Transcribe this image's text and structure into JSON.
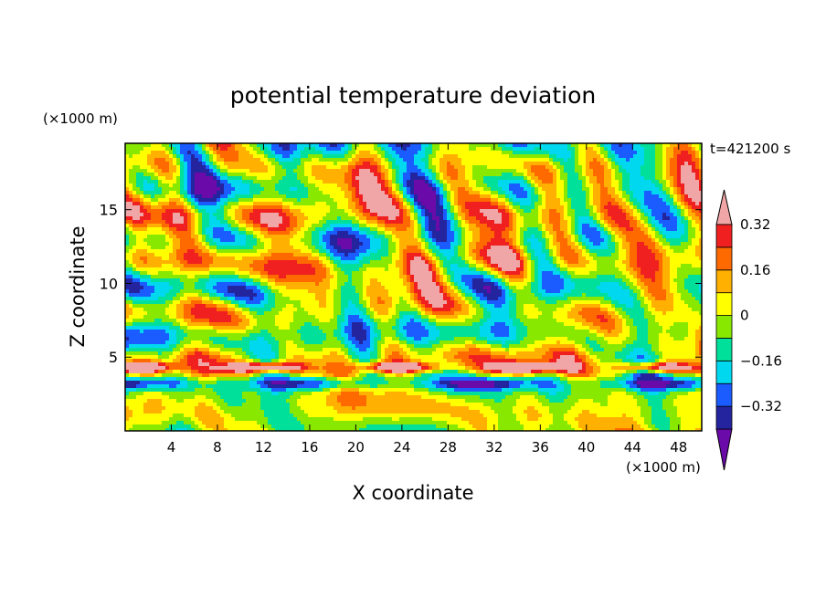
{
  "chart_data": {
    "type": "heatmap",
    "title": "potential temperature deviation",
    "xlabel": "X coordinate",
    "ylabel": "Z coordinate",
    "x_unit": "(×1000 m)",
    "y_unit": "(×1000 m)",
    "time_label": "t=421200 s",
    "xlim": [
      0,
      50
    ],
    "ylim": [
      0,
      19.5
    ],
    "x_ticks": [
      4,
      8,
      12,
      16,
      20,
      24,
      28,
      32,
      36,
      40,
      44,
      48
    ],
    "x_tick_labels": [
      "4",
      "8",
      "12",
      "16",
      "20",
      "24",
      "28",
      "32",
      "36",
      "40",
      "44",
      "48"
    ],
    "y_ticks": [
      5,
      10,
      15
    ],
    "y_tick_labels": [
      "5",
      "10",
      "15"
    ],
    "colorbar": {
      "levels": [
        -0.4,
        -0.32,
        -0.24,
        -0.16,
        -0.08,
        0,
        0.08,
        0.16,
        0.24,
        0.32,
        0.4
      ],
      "tick_values": [
        0.32,
        0.16,
        0,
        -0.16,
        -0.32
      ],
      "tick_labels": [
        "0.32",
        "0.16",
        "0",
        "−0.16",
        "−0.32"
      ],
      "colors": [
        "#6a0aa8",
        "#24249e",
        "#1a5cff",
        "#00d8f0",
        "#00e09a",
        "#88e800",
        "#ffff00",
        "#ffb000",
        "#ff6a00",
        "#f02020",
        "#f0a6a6"
      ],
      "extend": "both"
    }
  }
}
